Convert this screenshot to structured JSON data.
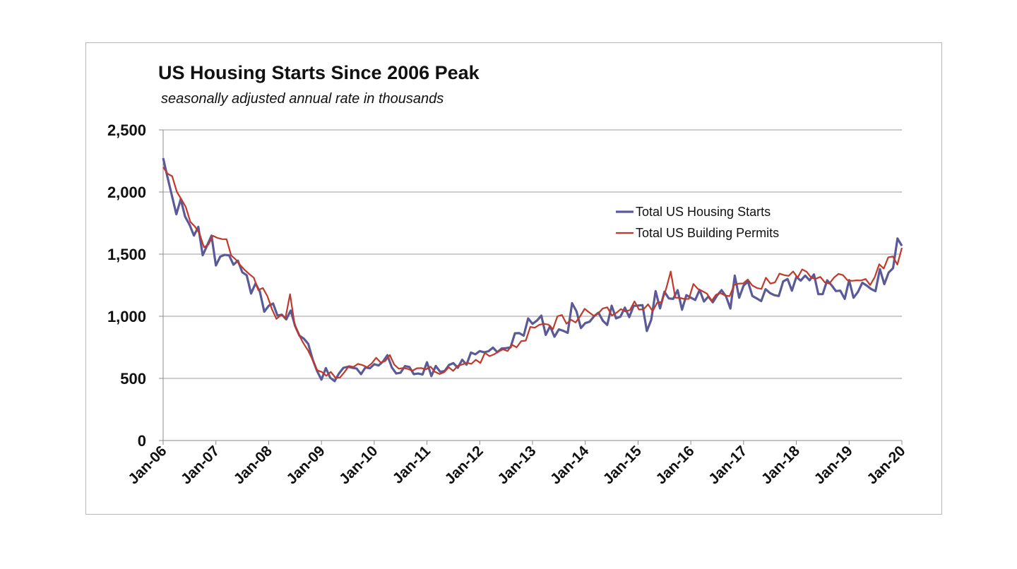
{
  "chart_data": {
    "type": "line",
    "title": "US Housing Starts Since 2006 Peak",
    "subtitle": "seasonally adjusted annual rate in thousands",
    "xlabel": "",
    "ylabel": "",
    "ylim": [
      0,
      2500
    ],
    "yticks": [
      "0",
      "500",
      "1,000",
      "1,500",
      "2,000",
      "2,500"
    ],
    "ytick_values": [
      0,
      500,
      1000,
      1500,
      2000,
      2500
    ],
    "xticks": [
      "Jan-06",
      "Jan-07",
      "Jan-08",
      "Jan-09",
      "Jan-10",
      "Jan-11",
      "Jan-12",
      "Jan-13",
      "Jan-14",
      "Jan-15",
      "Jan-16",
      "Jan-17",
      "Jan-18",
      "Jan-19",
      "Jan-20"
    ],
    "grid": "horizontal",
    "legend_position": "center-right",
    "series": [
      {
        "name": "Total US Housing Starts",
        "color": "#5b5a98",
        "values": [
          2273,
          2119,
          1969,
          1821,
          1942,
          1802,
          1737,
          1650,
          1720,
          1491,
          1570,
          1649,
          1409,
          1480,
          1495,
          1490,
          1415,
          1448,
          1354,
          1330,
          1183,
          1264,
          1197,
          1037,
          1084,
          1103,
          1005,
          1013,
          975,
          1046,
          923,
          844,
          820,
          777,
          652,
          560,
          490,
          583,
          505,
          478,
          540,
          585,
          594,
          586,
          579,
          534,
          588,
          581,
          614,
          604,
          636,
          687,
          588,
          539,
          546,
          599,
          592,
          534,
          539,
          531,
          630,
          518,
          600,
          553,
          559,
          608,
          623,
          585,
          650,
          610,
          708,
          694,
          720,
          710,
          719,
          748,
          711,
          741,
          743,
          750,
          863,
          864,
          844,
          983,
          939,
          965,
          1005,
          850,
          920,
          835,
          895,
          883,
          866,
          1105,
          1040,
          905,
          945,
          956,
          1000,
          1029,
          964,
          930,
          1085,
          983,
          997,
          1070,
          993,
          1084,
          1086,
          1090,
          881,
          972,
          1202,
          1063,
          1197,
          1144,
          1140,
          1210,
          1053,
          1170,
          1150,
          1131,
          1212,
          1119,
          1159,
          1112,
          1168,
          1210,
          1160,
          1062,
          1327,
          1149,
          1247,
          1279,
          1163,
          1144,
          1122,
          1218,
          1187,
          1170,
          1163,
          1280,
          1300,
          1206,
          1317,
          1287,
          1327,
          1290,
          1337,
          1178,
          1178,
          1290,
          1250,
          1203,
          1206,
          1140,
          1291,
          1149,
          1195,
          1270,
          1247,
          1220,
          1202,
          1380,
          1258,
          1352,
          1387,
          1626,
          1567
        ]
      },
      {
        "name": "Total US Building Permits",
        "color": "#c0392b",
        "values": [
          2200,
          2147,
          2127,
          2003,
          1942,
          1879,
          1760,
          1723,
          1668,
          1555,
          1578,
          1648,
          1630,
          1621,
          1620,
          1490,
          1458,
          1412,
          1373,
          1340,
          1311,
          1211,
          1227,
          1162,
          1058,
          979,
          1009,
          990,
          1178,
          936,
          847,
          780,
          724,
          648,
          565,
          552,
          521,
          552,
          505,
          507,
          550,
          600,
          592,
          617,
          607,
          590,
          620,
          666,
          628,
          639,
          688,
          610,
          578,
          584,
          576,
          562,
          582,
          583,
          573,
          595,
          552,
          535,
          550,
          590,
          560,
          601,
          612,
          626,
          617,
          650,
          624,
          706,
          679,
          693,
          716,
          734,
          720,
          770,
          750,
          800,
          804,
          914,
          908,
          931,
          939,
          933,
          896,
          1000,
          1010,
          940,
          972,
          950,
          1000,
          1060,
          1031,
          1004,
          1022,
          1063,
          1072,
          1007,
          1027,
          1058,
          1039,
          1050,
          1120,
          1054,
          1056,
          1096,
          1041,
          1110,
          1114,
          1224,
          1360,
          1150,
          1148,
          1139,
          1140,
          1260,
          1220,
          1202,
          1182,
          1122,
          1174,
          1187,
          1167,
          1162,
          1253,
          1263,
          1264,
          1296,
          1248,
          1228,
          1220,
          1310,
          1263,
          1273,
          1343,
          1331,
          1325,
          1361,
          1311,
          1377,
          1358,
          1310,
          1302,
          1317,
          1273,
          1263,
          1310,
          1341,
          1331,
          1290,
          1285,
          1289,
          1288,
          1300,
          1251,
          1314,
          1419,
          1384,
          1474,
          1482,
          1416,
          1551
        ]
      }
    ]
  }
}
